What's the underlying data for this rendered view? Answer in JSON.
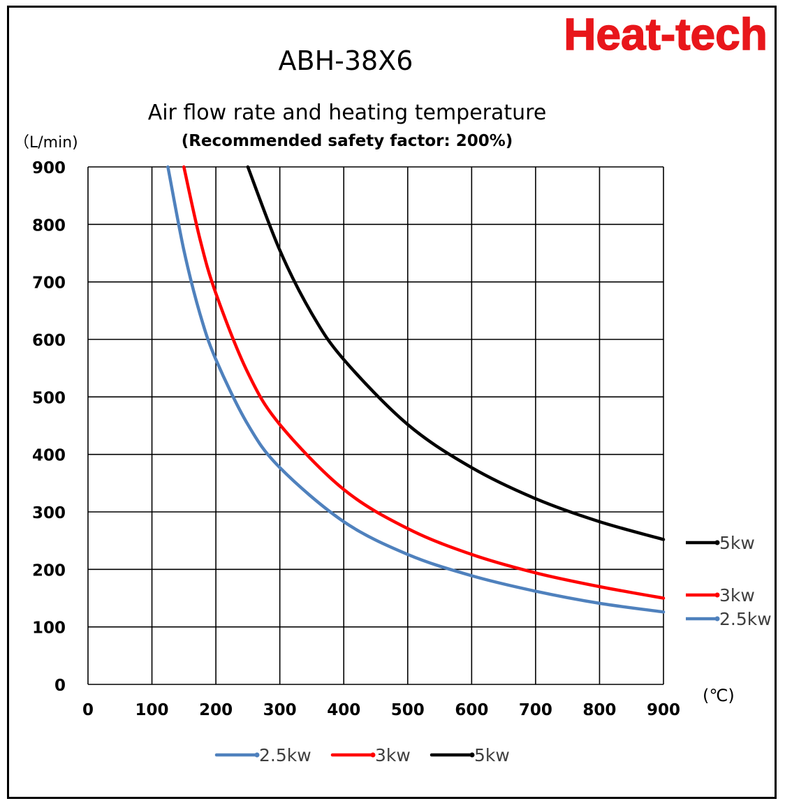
{
  "brand": {
    "logo_text": "Heat-tech",
    "logo_color": "#e8161b"
  },
  "model": "ABH-38X6",
  "chart_data": {
    "type": "line",
    "title": "Air flow rate and heating temperature",
    "subtitle": "(Recommended safety factor: 200%)",
    "xlabel": "(℃)",
    "ylabel": "（L/min)",
    "xlim": [
      0,
      900
    ],
    "ylim": [
      0,
      900
    ],
    "xticks": [
      "0",
      "100",
      "200",
      "300",
      "400",
      "500",
      "600",
      "700",
      "800",
      "900"
    ],
    "yticks": [
      "0",
      "100",
      "200",
      "300",
      "400",
      "500",
      "600",
      "700",
      "800",
      "900"
    ],
    "grid": true,
    "legend_position": "bottom",
    "series": [
      {
        "name": "2.5kw",
        "color": "#4f81bd",
        "points": [
          [
            125,
            900
          ],
          [
            150,
            755
          ],
          [
            175,
            645
          ],
          [
            200,
            565
          ],
          [
            250,
            452
          ],
          [
            300,
            377
          ],
          [
            400,
            283
          ],
          [
            500,
            226
          ],
          [
            600,
            189
          ],
          [
            700,
            162
          ],
          [
            800,
            141
          ],
          [
            900,
            126
          ]
        ]
      },
      {
        "name": "3kw",
        "color": "#ff0000",
        "points": [
          [
            150,
            900
          ],
          [
            175,
            775
          ],
          [
            200,
            680
          ],
          [
            250,
            542
          ],
          [
            300,
            452
          ],
          [
            400,
            339
          ],
          [
            500,
            271
          ],
          [
            600,
            226
          ],
          [
            700,
            194
          ],
          [
            800,
            170
          ],
          [
            900,
            150
          ]
        ]
      },
      {
        "name": "5kw",
        "color": "#000000",
        "points": [
          [
            250,
            900
          ],
          [
            300,
            755
          ],
          [
            350,
            645
          ],
          [
            400,
            565
          ],
          [
            500,
            452
          ],
          [
            600,
            377
          ],
          [
            700,
            323
          ],
          [
            800,
            283
          ],
          [
            900,
            252
          ]
        ]
      }
    ],
    "end_labels": [
      "5kw",
      "3kw",
      "2.5kw"
    ]
  }
}
